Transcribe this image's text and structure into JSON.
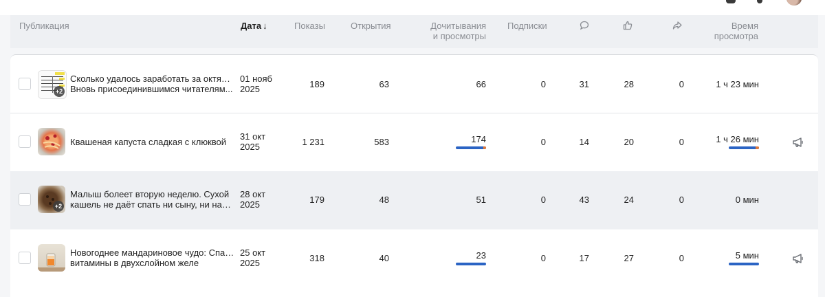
{
  "header": {
    "publication": "Публикация",
    "date": "Дата",
    "date_sort_icon": "arrow-down-icon",
    "impressions": "Показы",
    "opens": "Открытия",
    "reads_line1": "Дочитывания",
    "reads_line2": "и просмотры",
    "subscriptions": "Подписки",
    "comments_icon": "comment-icon",
    "likes_icon": "thumbs-up-icon",
    "shares_icon": "share-icon",
    "time_line1": "Время",
    "time_line2": "просмотра"
  },
  "colors": {
    "accent_bar": "#2b64c4",
    "bar_tip": "#e07a3a",
    "header_bg": "#eef0f3",
    "muted_text": "#8a8d93"
  },
  "rows": [
    {
      "title_line1": "Сколько удалось заработать за октябрь.",
      "title_line2": "Вновь присоединившимся читателям...",
      "date_line1": "01 нояб",
      "date_line2": "2025",
      "impressions": "189",
      "opens": "63",
      "reads": "66",
      "subscriptions": "0",
      "comments": "31",
      "likes": "28",
      "shares": "0",
      "time": "1 ч 23 мин",
      "extra_images": "+2"
    },
    {
      "title_line1": "Квашеная капуста сладкая с клюквой",
      "title_line2": "",
      "date_line1": "31 окт",
      "date_line2": "2025",
      "impressions": "1 231",
      "opens": "583",
      "reads": "174",
      "subscriptions": "0",
      "comments": "14",
      "likes": "20",
      "shares": "0",
      "time": "1 ч 26 мин",
      "promo_icon": "megaphone-icon"
    },
    {
      "title_line1": "Малыш болеет вторую неделю. Сухой",
      "title_line2": "кашель не даёт спать ни сыну, ни нам....",
      "date_line1": "28 окт",
      "date_line2": "2025",
      "impressions": "179",
      "opens": "48",
      "reads": "51",
      "subscriptions": "0",
      "comments": "43",
      "likes": "24",
      "shares": "0",
      "time": "0 мин",
      "extra_images": "+2"
    },
    {
      "title_line1": "Новогоднее мандариновое чудо: Спасаем",
      "title_line2": "витамины в двухслойном желе",
      "date_line1": "25 окт",
      "date_line2": "2025",
      "impressions": "318",
      "opens": "40",
      "reads": "23",
      "subscriptions": "0",
      "comments": "17",
      "likes": "27",
      "shares": "0",
      "time": "5 мин",
      "promo_icon": "megaphone-icon"
    }
  ]
}
